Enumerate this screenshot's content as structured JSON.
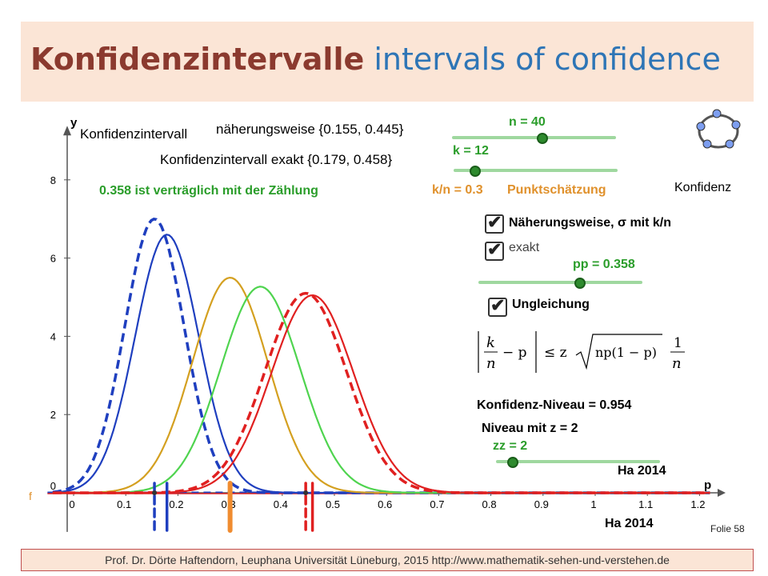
{
  "slide": {
    "title_de": "Konfidenzintervalle",
    "title_en": "intervals of confidence",
    "folie_label": "Folie",
    "folie_number": "58",
    "footer": "Prof. Dr. Dörte Haftendorn, Leuphana Universität Lüneburg, 2015  http://www.mathematik-sehen-und-verstehen.de"
  },
  "panel": {
    "ki_label": "Konfidenzintervall",
    "ki_approx": "näherungsweise {0.155, 0.445}",
    "ki_exact": "Konfidenzintervall exakt  {0.179, 0.458}",
    "compat": "0.358 ist verträglich mit der Zählung",
    "n_label": "n = 40",
    "k_label": "k = 12",
    "kn_label": "k/n = 0.3",
    "punkt_label": "Punktschätzung",
    "konfidenz_label": "Konfidenz",
    "cb_approx": "Näherungsweise, σ mit k/n",
    "cb_exact": "exakt",
    "pp_label": "pp = 0.358",
    "cb_ineq": "Ungleichung",
    "niveau": "Konfidenz-Niveau = 0.954",
    "niveau_z": "Niveau mit z =  2",
    "zz_label": "zz = 2",
    "ha_upper": "Ha 2014",
    "ha_lower": "Ha 2014",
    "f_label": "f",
    "check_glyph": "✔",
    "sliders": {
      "n": 0.55,
      "k": 0.13,
      "pp": 0.62,
      "zz": 0.1
    },
    "colors": {
      "green": "#2a9d2a",
      "orange": "#e0912c",
      "blue": "#1f3fbf",
      "red": "#e02020",
      "gold": "#d4a020",
      "lightgreen": "#4fd44f"
    }
  },
  "formula": {
    "k": "k",
    "n": "n",
    "minus_p": "− p",
    "le_z": "≤ z",
    "radicand": "np(1 − p)",
    "one": "1",
    "n2": "n"
  },
  "chart_data": {
    "type": "line",
    "xlabel": "p",
    "ylabel": "y",
    "xlim": [
      -0.05,
      1.25
    ],
    "ylim": [
      -1.0,
      9.3
    ],
    "x_ticks": [
      0,
      0.1,
      0.2,
      0.3,
      0.4,
      0.5,
      0.6,
      0.7,
      0.8,
      0.9,
      1,
      1.1,
      1.2
    ],
    "x_tick_labels": [
      "0",
      "0.1",
      "0.2",
      "0.3",
      "0.4",
      "0.5",
      "0.6",
      "0.7",
      "0.8",
      "0.9",
      "1",
      "1.1",
      "1.2"
    ],
    "y_ticks": [
      2,
      4,
      6,
      8
    ],
    "y_tick_labels": [
      "2",
      "4",
      "6",
      "8"
    ],
    "origin_label": "0",
    "series": [
      {
        "mean": 0.155,
        "sd": 0.057,
        "peak": 7.0,
        "color": "#1f3fbf",
        "dashed": true
      },
      {
        "mean": 0.179,
        "sd": 0.061,
        "peak": 6.6,
        "color": "#1f3fbf",
        "dashed": false
      },
      {
        "mean": 0.3,
        "sd": 0.0725,
        "peak": 5.5,
        "color": "#d4a020",
        "dashed": false
      },
      {
        "mean": 0.358,
        "sd": 0.0758,
        "peak": 5.27,
        "color": "#4fd44f",
        "dashed": false
      },
      {
        "mean": 0.445,
        "sd": 0.0786,
        "peak": 5.1,
        "color": "#e02020",
        "dashed": true
      },
      {
        "mean": 0.458,
        "sd": 0.0788,
        "peak": 5.05,
        "color": "#e02020",
        "dashed": false
      }
    ],
    "markers": [
      {
        "x": 0.155,
        "color": "#1f3fbf",
        "dashed": true
      },
      {
        "x": 0.179,
        "color": "#1f3fbf",
        "dashed": false
      },
      {
        "x": 0.3,
        "color": "#f08c30",
        "dashed": false
      },
      {
        "x": 0.445,
        "color": "#e02020",
        "dashed": true
      },
      {
        "x": 0.458,
        "color": "#e02020",
        "dashed": false
      }
    ]
  }
}
